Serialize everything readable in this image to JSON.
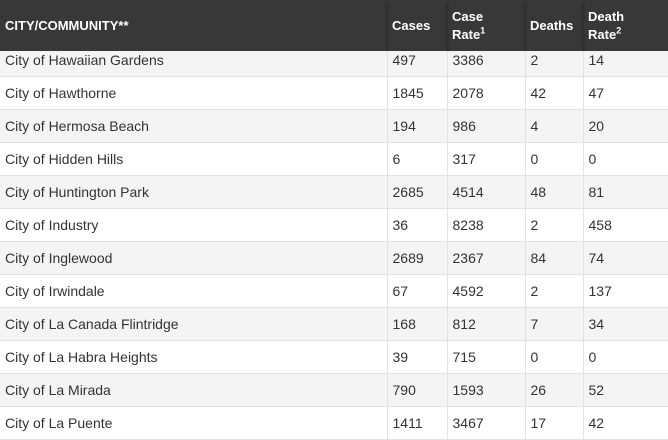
{
  "headers": {
    "city": "CITY/COMMUNITY**",
    "cases": "Cases",
    "case_rate_line1": "Case",
    "case_rate_line2": "Rate",
    "case_rate_sup": "1",
    "deaths": "Deaths",
    "death_rate_line1": "Death",
    "death_rate_line2": "Rate",
    "death_rate_sup": "2"
  },
  "rows": [
    {
      "city": "City of Hawaiian Gardens",
      "cases": "497",
      "case_rate": "3386",
      "deaths": "2",
      "death_rate": "14"
    },
    {
      "city": "City of Hawthorne",
      "cases": "1845",
      "case_rate": "2078",
      "deaths": "42",
      "death_rate": "47"
    },
    {
      "city": "City of Hermosa Beach",
      "cases": "194",
      "case_rate": "986",
      "deaths": "4",
      "death_rate": "20"
    },
    {
      "city": "City of Hidden Hills",
      "cases": "6",
      "case_rate": "317",
      "deaths": "0",
      "death_rate": "0"
    },
    {
      "city": "City of Huntington Park",
      "cases": "2685",
      "case_rate": "4514",
      "deaths": "48",
      "death_rate": "81"
    },
    {
      "city": "City of Industry",
      "cases": "36",
      "case_rate": "8238",
      "deaths": "2",
      "death_rate": "458"
    },
    {
      "city": "City of Inglewood",
      "cases": "2689",
      "case_rate": "2367",
      "deaths": "84",
      "death_rate": "74"
    },
    {
      "city": "City of Irwindale",
      "cases": "67",
      "case_rate": "4592",
      "deaths": "2",
      "death_rate": "137"
    },
    {
      "city": "City of La Canada Flintridge",
      "cases": "168",
      "case_rate": "812",
      "deaths": "7",
      "death_rate": "34"
    },
    {
      "city": "City of La Habra Heights",
      "cases": "39",
      "case_rate": "715",
      "deaths": "0",
      "death_rate": "0"
    },
    {
      "city": "City of La Mirada",
      "cases": "790",
      "case_rate": "1593",
      "deaths": "26",
      "death_rate": "52"
    },
    {
      "city": "City of La Puente",
      "cases": "1411",
      "case_rate": "3467",
      "deaths": "17",
      "death_rate": "42"
    }
  ]
}
